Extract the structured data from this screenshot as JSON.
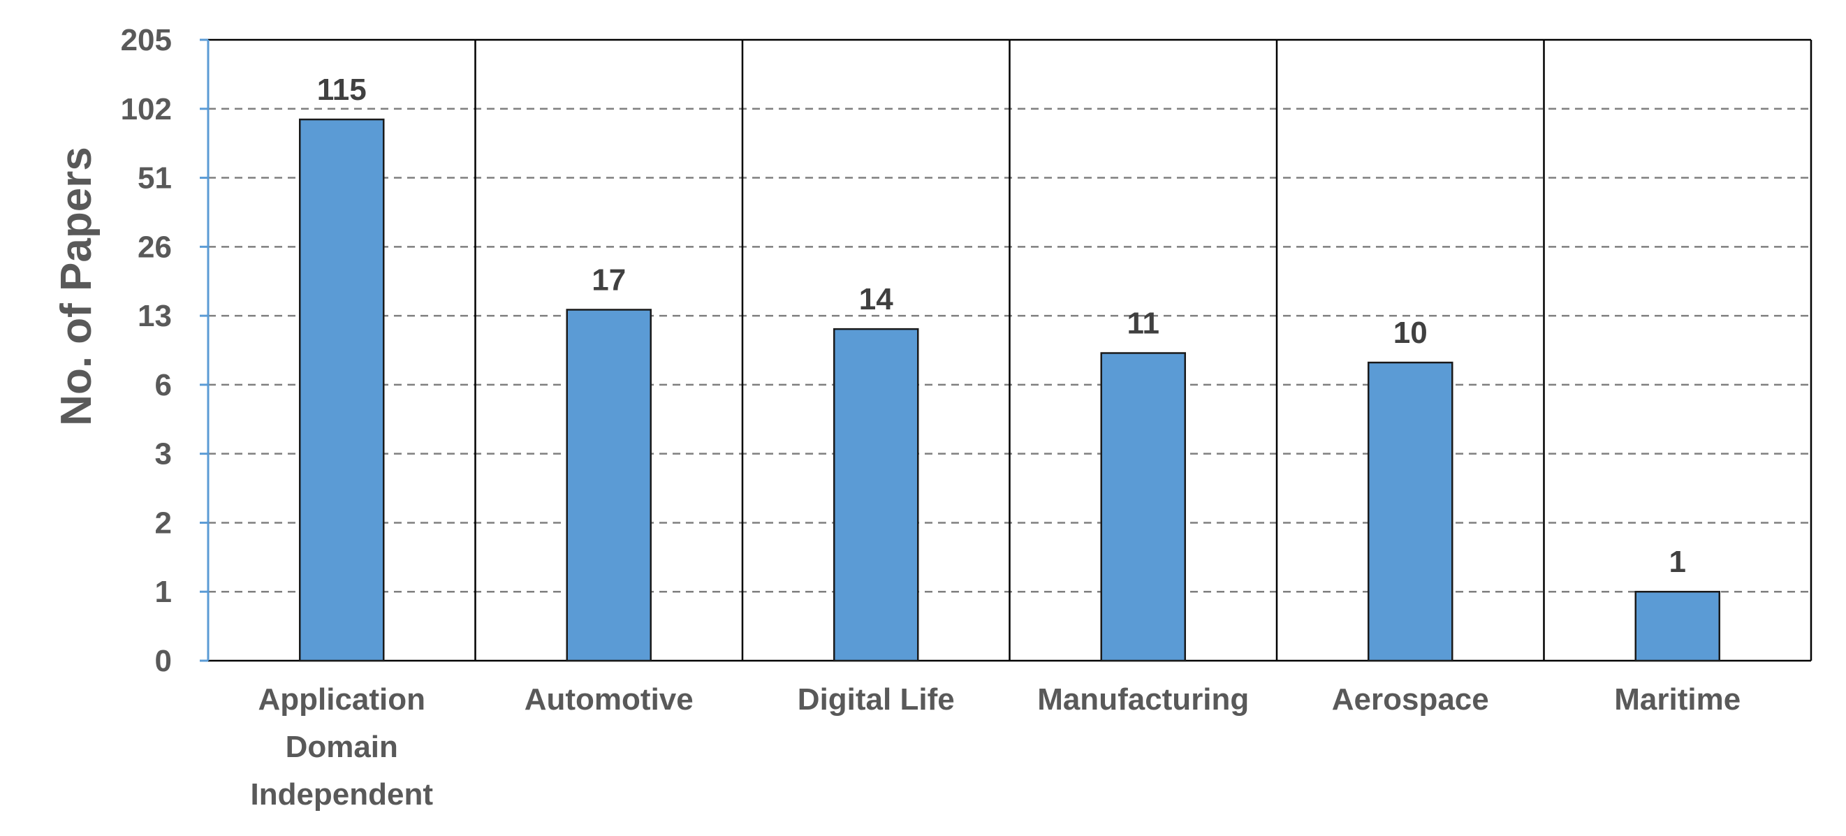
{
  "chart_data": {
    "type": "bar",
    "categories": [
      "Application Domain Independent",
      "Automotive",
      "Digital Life",
      "Manufacturing",
      "Aerospace",
      "Maritime"
    ],
    "category_lines": [
      [
        "Application",
        "Domain",
        "Independent"
      ],
      [
        "Automotive"
      ],
      [
        "Digital Life"
      ],
      [
        "Manufacturing"
      ],
      [
        "Aerospace"
      ],
      [
        "Maritime"
      ]
    ],
    "values": [
      115,
      17,
      14,
      11,
      10,
      1
    ],
    "data_labels": [
      "115",
      "17",
      "14",
      "11",
      "10",
      "1"
    ],
    "title": "",
    "xlabel": "",
    "ylabel": "No. of Papers",
    "y_scale": "log2",
    "y_ticks": [
      0,
      1,
      2,
      3,
      6,
      13,
      26,
      51,
      102,
      205
    ],
    "y_tick_labels": [
      "0",
      "1",
      "2",
      "3",
      "6",
      "13",
      "26",
      "51",
      "102",
      "205"
    ],
    "ylim": [
      0,
      205
    ],
    "grid": true,
    "legend": "none",
    "colors": {
      "bar_fill": "#5B9BD5",
      "bar_stroke": "#1a1a1a",
      "grid": "#7f7f7f",
      "y_axis": "#5B9BD5",
      "frame": "#000000",
      "text": "#595959",
      "data_label": "#404040"
    }
  }
}
